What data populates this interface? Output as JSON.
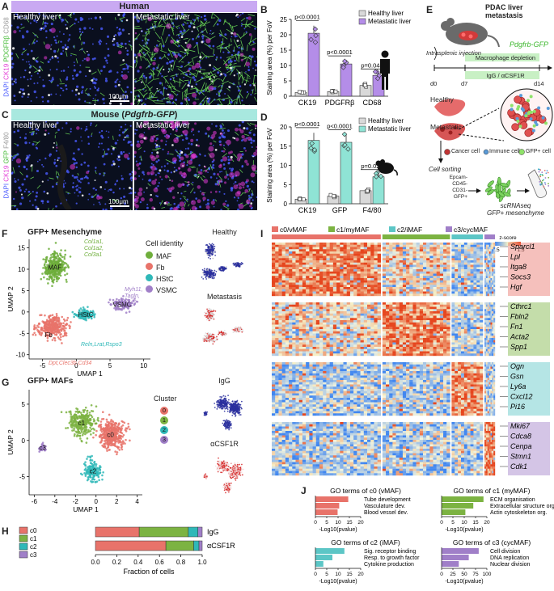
{
  "panels": {
    "A": {
      "letter": "A",
      "header": "Human",
      "left_label": "Healthy liver",
      "right_label": "Metastatic liver",
      "scale": "100μm",
      "stain_dapi": "DAPI",
      "stain_1": "CK19",
      "stain_2": "PDGFRβ",
      "stain_3": "CD68",
      "colors": {
        "header": "#c9a9f2",
        "dapi": "#4a5bff",
        "stain1": "#e23ad6",
        "stain2": "#6fe05a",
        "stain3": "#e0e0e0"
      }
    },
    "C": {
      "letter": "C",
      "header_prefix": "Mouse (",
      "header_italic": "Pdgfrb-GFP",
      "header_suffix": ")",
      "left_label": "Healthy liver",
      "right_label": "Metastatic liver",
      "scale": "100μm",
      "stain_dapi": "DAPI",
      "stain_1": "CK19",
      "stain_2": "GFP",
      "stain_3": "F4/80",
      "colors": {
        "header": "#a8e8df"
      }
    },
    "B": {
      "letter": "B"
    },
    "D": {
      "letter": "D"
    },
    "E": {
      "letter": "E",
      "title": "PDAC liver metastasis",
      "mouse_label": "Pdgfrb-GFP",
      "injection": "Intrasplenic injection",
      "depletion": "Macrophage depletion",
      "treatment": "IgG / αCSF1R",
      "d0": "d0",
      "d7": "d7",
      "d14": "d14",
      "healthy": "Healthy",
      "metastatic": "Metastatic",
      "cancer_cell": "Cancer cell",
      "immune_cell": "Immune cell",
      "gfp_cell": "GFP+ cell",
      "sorting": "Cell sorting",
      "gates": [
        "Epcam-",
        "CD45-",
        "CD31-",
        "GFP+"
      ],
      "scrnaseq_1": "scRNAseq",
      "scrnaseq_2": "GFP+ mesenchyme"
    },
    "F": {
      "letter": "F",
      "title": "GFP+ Mesenchyme",
      "legend_title": "Cell identity",
      "types": [
        {
          "name": "MAF",
          "color": "#6fae3c"
        },
        {
          "name": "Fb",
          "color": "#e8736a"
        },
        {
          "name": "HStC",
          "color": "#2fb8b8"
        },
        {
          "name": "VSMC",
          "color": "#a07fc8"
        }
      ],
      "maf_genes": [
        "Col1a1,",
        "Col1a2,",
        "Col3a1"
      ],
      "vsmc_genes": [
        "Myh11,",
        "Tagln,",
        "Myl9"
      ],
      "hstc_genes": "Reln,Lrat,Rspo3",
      "fb_genes": "Dpt,Clec3b,Cd34",
      "cluster_maf": "MAF",
      "cluster_vsmc": "VSMC",
      "cluster_hstc": "HStC",
      "cluster_fb": "Fb",
      "inset_1": "Healthy",
      "inset_2": "Metastasis"
    },
    "G": {
      "letter": "G",
      "title": "GFP+ MAFs",
      "legend_title": "Cluster",
      "clusters": [
        {
          "id": "0",
          "color": "#e8736a"
        },
        {
          "id": "1",
          "color": "#7cb342"
        },
        {
          "id": "2",
          "color": "#2fb8b8"
        },
        {
          "id": "3",
          "color": "#a07fc8"
        }
      ],
      "labels": [
        "c0",
        "c1",
        "c2",
        "c3"
      ],
      "inset_1": "IgG",
      "inset_2": "αCSF1R"
    },
    "H": {
      "letter": "H",
      "xlabel": "Fraction of cells",
      "legend": [
        "c0",
        "c1",
        "c2",
        "c3"
      ],
      "rows": [
        "IgG",
        "αCSF1R"
      ]
    },
    "I": {
      "letter": "I",
      "groups": [
        "c0/vMAF",
        "c1/myMAF",
        "c2/iMAF",
        "c3/cycMAF"
      ],
      "group_colors": [
        "#e8736a",
        "#7cb342",
        "#5cc6c6",
        "#a07fc8"
      ],
      "zscore_label": "z-score",
      "zscore_min": "-1.5",
      "zscore_max": "1.5",
      "genes": [
        [
          "Sparcl1",
          "Lpl",
          "Itga8",
          "Socs3",
          "Hgf"
        ],
        [
          "Cthrc1",
          "Fbln2",
          "Fn1",
          "Acta2",
          "Spp1"
        ],
        [
          "Ogn",
          "Gsn",
          "Ly6a",
          "Cxcl12",
          "Pi16"
        ],
        [
          "Mki67",
          "Cdca8",
          "Cenpa",
          "Stmn1",
          "Cdk1"
        ]
      ]
    },
    "J": {
      "letter": "J",
      "xlabel": "-Log10(pvalue)",
      "boxes": [
        {
          "title": "GO terms of c0 (vMAF)",
          "terms": [
            "Tube development",
            "Vasculature dev.",
            "Blood vessel dev."
          ],
          "color": "#e8736a"
        },
        {
          "title": "GO terms of c1 (myMAF)",
          "terms": [
            "ECM organisation",
            "Extracellular structure org.",
            "Actin cytoskeleton org."
          ],
          "color": "#7cb342"
        },
        {
          "title": "GO terms of c2 (iMAF)",
          "terms": [
            "Sig. receptor binding",
            "Resp. to growth factor",
            "Cytokine production"
          ],
          "color": "#5cc6c6"
        },
        {
          "title": "GO terms of c3 (cycMAF)",
          "terms": [
            "Cell division",
            "DNA replication",
            "Nuclear division"
          ],
          "color": "#a07fc8"
        }
      ]
    }
  },
  "chart_data": [
    {
      "id": "B",
      "type": "bar",
      "ylabel": "Staining area (%) per FoV",
      "categories": [
        "CK19",
        "PDGFRβ",
        "CD68"
      ],
      "ylim": [
        0,
        25
      ],
      "yticks": [
        0,
        5,
        10,
        15,
        20,
        25
      ],
      "series": [
        {
          "name": "Healthy liver",
          "values": [
            1.2,
            1.5,
            3.5
          ],
          "color": "#d9d9d9"
        },
        {
          "name": "Metastatic liver",
          "values": [
            20.5,
            10.5,
            6.8
          ],
          "color": "#b48de8"
        }
      ],
      "annotations": [
        "p<0.0001",
        "p<0.0001",
        "p=0.044"
      ]
    },
    {
      "id": "D",
      "type": "bar",
      "ylabel": "Staining area (%) per FoV",
      "categories": [
        "CK19",
        "GFP",
        "F4/80"
      ],
      "ylim": [
        0,
        20
      ],
      "yticks": [
        0,
        5,
        10,
        15,
        20
      ],
      "series": [
        {
          "name": "Healthy liver",
          "values": [
            1.2,
            2.0,
            3.4
          ],
          "color": "#d9d9d9"
        },
        {
          "name": "Metastatic liver",
          "values": [
            16.5,
            16.0,
            7.0
          ],
          "color": "#8fe3d5"
        }
      ],
      "annotations": [
        "p<0.0001",
        "p<0.0001",
        "p=0.028"
      ]
    },
    {
      "id": "F",
      "type": "scatter",
      "xlabel": "UMAP 1",
      "ylabel": "UMAP 2",
      "xlim": [
        -7,
        11
      ],
      "ylim": [
        -11,
        17
      ],
      "xticks": [
        -5,
        0,
        5,
        10
      ],
      "yticks": [
        -10,
        -5,
        0,
        5,
        10,
        15
      ],
      "clusters": [
        {
          "name": "MAF",
          "cx": -3.2,
          "cy": 10.5,
          "sx": 1.4,
          "sy": 3.2,
          "n": 360
        },
        {
          "name": "Fb",
          "cx": -3.5,
          "cy": -3.5,
          "sx": 2.2,
          "sy": 2.6,
          "n": 330
        },
        {
          "name": "HStC",
          "cx": 1.4,
          "cy": -0.6,
          "sx": 1.4,
          "sy": 1.1,
          "n": 150
        },
        {
          "name": "VSMC",
          "cx": 6.8,
          "cy": 1.8,
          "sx": 1.6,
          "sy": 1.4,
          "n": 120
        }
      ]
    },
    {
      "id": "G",
      "type": "scatter",
      "xlabel": "UMAP 1",
      "ylabel": "UMAP 2",
      "xlim": [
        -6.5,
        4.5
      ],
      "ylim": [
        -7.5,
        7
      ],
      "xticks": [
        -6,
        -4,
        -2,
        0,
        2,
        4
      ],
      "yticks": [
        -5,
        0,
        5
      ],
      "clusters": [
        {
          "id": "0",
          "cx": 1.4,
          "cy": 0.8,
          "sx": 1.3,
          "sy": 2.0,
          "n": 420
        },
        {
          "id": "1",
          "cx": -1.4,
          "cy": 2.4,
          "sx": 1.3,
          "sy": 1.8,
          "n": 300
        },
        {
          "id": "2",
          "cx": -0.3,
          "cy": -4.2,
          "sx": 0.8,
          "sy": 1.4,
          "n": 150
        },
        {
          "id": "3",
          "cx": -5.2,
          "cy": -1.0,
          "sx": 0.35,
          "sy": 0.55,
          "n": 45
        }
      ]
    },
    {
      "id": "H",
      "type": "bar",
      "orientation": "horizontal-stacked",
      "categories": [
        "IgG",
        "αCSF1R"
      ],
      "xlim": [
        0,
        1
      ],
      "xticks": [
        0.0,
        0.2,
        0.4,
        0.6,
        0.8,
        1.0
      ],
      "series": [
        {
          "name": "c0",
          "values": [
            0.41,
            0.66
          ],
          "color": "#e8736a"
        },
        {
          "name": "c1",
          "values": [
            0.46,
            0.26
          ],
          "color": "#7cb342"
        },
        {
          "name": "c2",
          "values": [
            0.09,
            0.05
          ],
          "color": "#2fb8b8"
        },
        {
          "name": "c3",
          "values": [
            0.04,
            0.03
          ],
          "color": "#a07fc8"
        }
      ]
    },
    {
      "id": "I",
      "type": "heatmap",
      "row_blocks": 4,
      "rows_per_block": 24,
      "col_groups": [
        64,
        40,
        19,
        7
      ],
      "zmin": -1.5,
      "zmax": 1.5
    },
    {
      "id": "J",
      "type": "bar",
      "orientation": "horizontal",
      "panels": [
        {
          "values": [
            14.5,
            10.5,
            9.8
          ],
          "xlim": [
            0,
            20
          ],
          "xticks": [
            0,
            5,
            10,
            15,
            20
          ]
        },
        {
          "values": [
            18.5,
            14.0,
            10.5
          ],
          "xlim": [
            0,
            20
          ],
          "xticks": [
            0,
            5,
            10,
            15,
            20
          ]
        },
        {
          "values": [
            12.8,
            7.5,
            3.5
          ],
          "xlim": [
            0,
            20
          ],
          "xticks": [
            0,
            5,
            10,
            15,
            20
          ]
        },
        {
          "values": [
            82,
            60,
            38
          ],
          "xlim": [
            0,
            100
          ],
          "xticks": [
            0,
            25,
            50,
            75,
            100
          ]
        }
      ]
    }
  ]
}
